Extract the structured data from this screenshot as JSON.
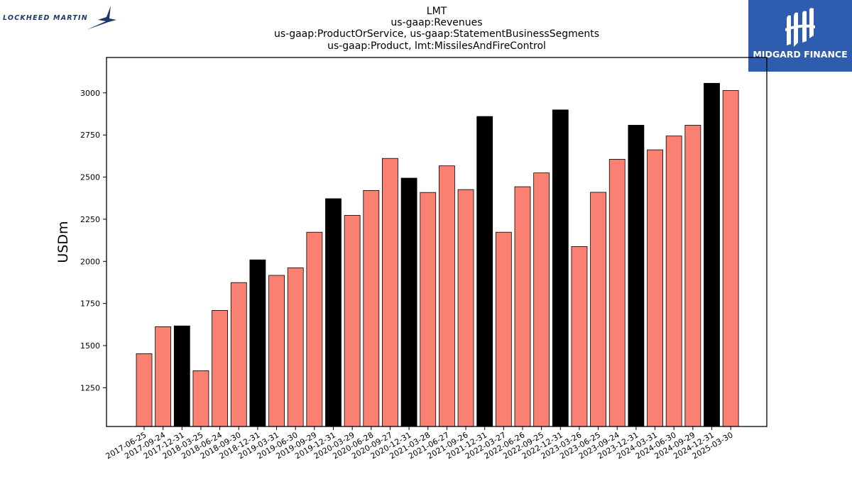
{
  "branding": {
    "left_logo_text": "LOCKHEED MARTIN",
    "left_logo_icon": "lockheed-star-icon",
    "right_logo_text": "MIDGARD FINANCE",
    "right_logo_icon": "midgard-mark-icon",
    "right_logo_bg": "#2e5cae"
  },
  "chart_data": {
    "type": "bar",
    "title_lines": [
      "LMT",
      "us-gaap:Revenues",
      "us-gaap:ProductOrService, us-gaap:StatementBusinessSegments",
      "us-gaap:Product, lmt:MissilesAndFireControl"
    ],
    "xlabel": "",
    "ylabel": "USDm",
    "ylim": [
      1020,
      3210
    ],
    "yticks": [
      1250,
      1500,
      1750,
      2000,
      2250,
      2500,
      2750,
      3000
    ],
    "colors": {
      "quarter": "#fa8072",
      "year_end": "#000000"
    },
    "categories": [
      "2017-06-25",
      "2017-09-24",
      "2017-12-31",
      "2018-03-25",
      "2018-06-24",
      "2018-09-30",
      "2018-12-31",
      "2019-03-31",
      "2019-06-30",
      "2019-09-29",
      "2019-12-31",
      "2020-03-29",
      "2020-06-28",
      "2020-09-27",
      "2020-12-31",
      "2021-03-28",
      "2021-06-27",
      "2021-09-26",
      "2021-12-31",
      "2022-03-27",
      "2022-06-26",
      "2022-09-25",
      "2022-12-31",
      "2023-03-26",
      "2023-06-25",
      "2023-09-24",
      "2023-12-31",
      "2024-03-31",
      "2024-06-30",
      "2024-09-29",
      "2024-12-31",
      "2025-03-30"
    ],
    "values": [
      1452,
      1612,
      1617,
      1351,
      1709,
      1874,
      2009,
      1917,
      1962,
      2173,
      2372,
      2273,
      2421,
      2611,
      2494,
      2409,
      2567,
      2426,
      2860,
      2173,
      2443,
      2525,
      2899,
      2088,
      2410,
      2606,
      2808,
      2662,
      2744,
      2808,
      3057,
      3014
    ],
    "year_end": [
      false,
      false,
      true,
      false,
      false,
      false,
      true,
      false,
      false,
      false,
      true,
      false,
      false,
      false,
      true,
      false,
      false,
      false,
      true,
      false,
      false,
      false,
      true,
      false,
      false,
      false,
      true,
      false,
      false,
      false,
      true,
      false
    ]
  }
}
